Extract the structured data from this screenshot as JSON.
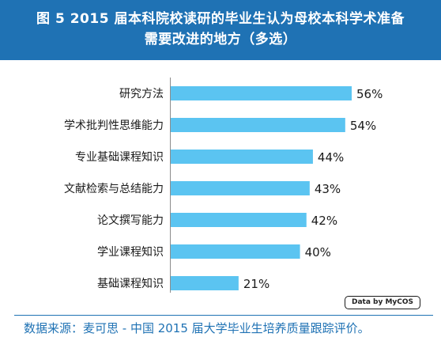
{
  "header": {
    "title_line1": "图 5  2015 届本科院校读研的毕业生认为母校本科学术准备",
    "title_line2": "需要改进的地方（多选）"
  },
  "badge": {
    "text": "Data by MyCOS"
  },
  "footer": {
    "source": "数据来源：麦可思 - 中国 2015 届大学毕业生培养质量跟踪评价。"
  },
  "colors": {
    "bar": "#5bc4f1",
    "header_bg": "#1f72b4",
    "source_text": "#1f72b4"
  },
  "chart_data": {
    "type": "bar",
    "orientation": "horizontal",
    "title": "图 5  2015 届本科院校读研的毕业生认为母校本科学术准备需要改进的地方（多选）",
    "categories": [
      "研究方法",
      "学术批判性思维能力",
      "专业基础课程知识",
      "文献检索与总结能力",
      "论文撰写能力",
      "学业课程知识",
      "基础课程知识"
    ],
    "values": [
      56,
      54,
      44,
      43,
      42,
      40,
      21
    ],
    "value_labels": [
      "56%",
      "54%",
      "44%",
      "43%",
      "42%",
      "40%",
      "21%"
    ],
    "unit": "%",
    "xlim": [
      0,
      56
    ],
    "grid": false,
    "legend": "none"
  }
}
